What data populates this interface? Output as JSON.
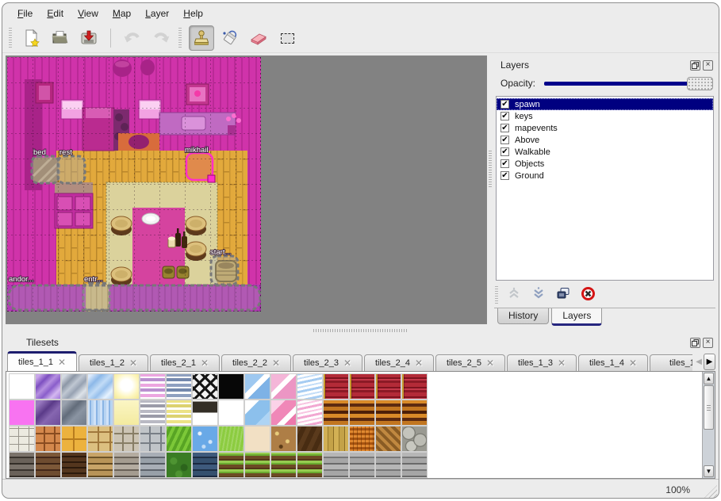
{
  "menu": {
    "items": [
      {
        "label": "File"
      },
      {
        "label": "Edit"
      },
      {
        "label": "View"
      },
      {
        "label": "Map"
      },
      {
        "label": "Layer"
      },
      {
        "label": "Help"
      }
    ]
  },
  "toolbar": {
    "icons": [
      "new-file",
      "open-file",
      "save-file",
      "undo",
      "redo",
      "stamp-brush",
      "bucket-fill",
      "eraser",
      "rectangular-select"
    ],
    "active_tool": "stamp-brush"
  },
  "map": {
    "objects": [
      {
        "label": "bed"
      },
      {
        "label": "rest"
      },
      {
        "label": "mikhail",
        "selected": true
      },
      {
        "label": "start..."
      },
      {
        "label": "entr..."
      },
      {
        "label": "andor..."
      }
    ]
  },
  "layers_panel": {
    "title": "Layers",
    "opacity_label": "Opacity:",
    "opacity_value": 100,
    "items": [
      {
        "name": "spawn",
        "checked": true,
        "selected": true
      },
      {
        "name": "keys",
        "checked": true
      },
      {
        "name": "mapevents",
        "checked": true
      },
      {
        "name": "Above",
        "checked": true
      },
      {
        "name": "Walkable",
        "checked": true
      },
      {
        "name": "Objects",
        "checked": true
      },
      {
        "name": "Ground",
        "checked": true
      }
    ],
    "toolbar_icons": [
      "raise-layer",
      "lower-layer",
      "duplicate-layer",
      "delete-layer"
    ],
    "tabs": [
      {
        "label": "History"
      },
      {
        "label": "Layers",
        "active": true
      }
    ]
  },
  "tilesets_panel": {
    "title": "Tilesets",
    "tabs": [
      {
        "label": "tiles_1_1",
        "active": true
      },
      {
        "label": "tiles_1_2"
      },
      {
        "label": "tiles_2_1"
      },
      {
        "label": "tiles_2_2"
      },
      {
        "label": "tiles_2_3"
      },
      {
        "label": "tiles_2_4"
      },
      {
        "label": "tiles_2_5"
      },
      {
        "label": "tiles_1_3"
      },
      {
        "label": "tiles_1_4"
      },
      {
        "label": "tiles_1_"
      }
    ],
    "grid": [
      [
        "white",
        "glass_purple",
        "glass_gray",
        "glass_blue",
        "glow_yellow",
        "stripe_pink",
        "stripe_bluegray",
        "lattice",
        "black",
        "glass_blue2",
        "glass_pink",
        "wave_blue",
        "curtain_red",
        "curtain_red",
        "curtain_red",
        "curtain_red"
      ],
      [
        "magenta",
        "glass_purple_dark",
        "glass_gray_dark",
        "blue_streak",
        "pale_yellow",
        "stripe_gray",
        "stripe_yellow",
        "sign_dark",
        "white",
        "blue_patch",
        "glass_pink2",
        "wave_pink",
        "stripe_brown",
        "stripe_brown",
        "stripe_brown",
        "stripe_brown"
      ],
      [
        "stone_white",
        "cobble_orange",
        "tile_yellow",
        "stone_tan",
        "cobble_gray",
        "stone_gray",
        "grass_stripe",
        "water",
        "grass",
        "sand",
        "floral_brown",
        "wood_dark",
        "planks_v",
        "weave_orange",
        "herringbone",
        "stones_round"
      ],
      [
        "wall_darkstone",
        "wall_brown",
        "wall_darkbrick",
        "wall_tanbrick",
        "wall_graystone",
        "wall_graybrick",
        "hedge",
        "wall_bluebrick",
        "farm_row",
        "farm_row",
        "farm_row",
        "farm_row",
        "planks_gray",
        "planks_gray",
        "planks_gray",
        "planks_gray"
      ]
    ]
  },
  "statusbar": {
    "zoom": "100%"
  },
  "colors": {
    "accent": "#000080",
    "selection": "#ff2ec8",
    "canvas_gray": "#828282",
    "map_magenta": "#cf35ab"
  }
}
